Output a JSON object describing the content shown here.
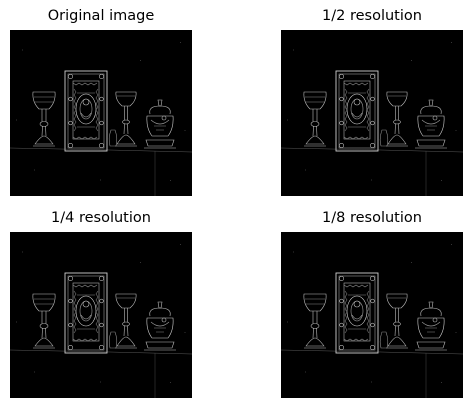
{
  "panels": [
    {
      "title": "Original image"
    },
    {
      "title": "1/2 resolution"
    },
    {
      "title": "1/4 resolution"
    },
    {
      "title": "1/8 resolution"
    }
  ],
  "colors": {
    "background": "#ffffff",
    "image_background": "#000000",
    "edge_color": "#c8c8c8"
  }
}
